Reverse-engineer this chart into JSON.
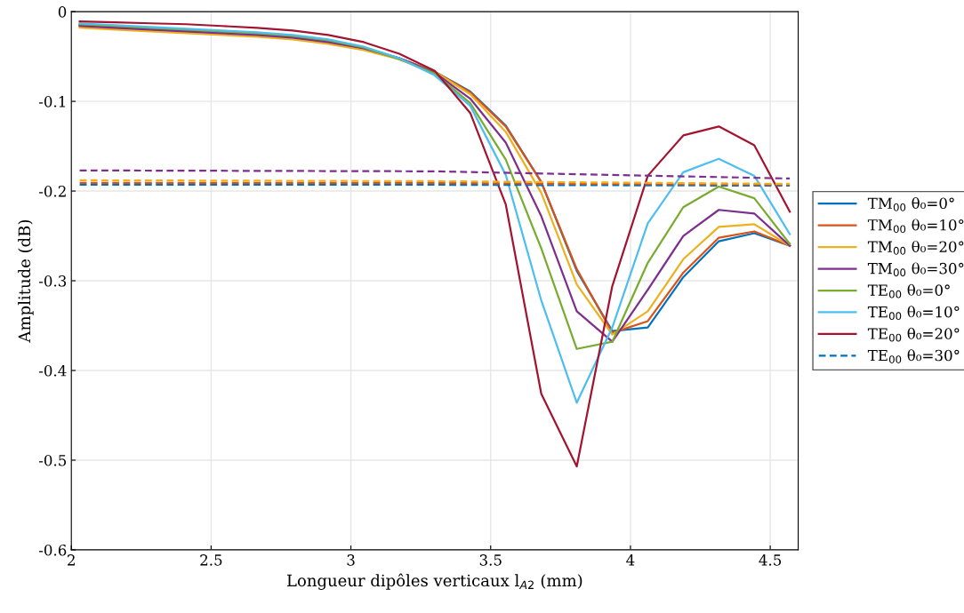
{
  "chart_data": {
    "type": "line",
    "xlabel": "Longueur dipôles verticaux l$_{A2}$ (mm)",
    "ylabel": "Amplitude (dB)",
    "x": [
      2.03,
      2.157,
      2.284,
      2.411,
      2.538,
      2.665,
      2.792,
      2.919,
      3.046,
      3.173,
      3.3,
      3.427,
      3.554,
      3.681,
      3.808,
      3.935,
      4.062,
      4.189,
      4.316,
      4.443,
      4.57
    ],
    "xlim": [
      2,
      4.6
    ],
    "xticks": [
      2,
      2.5,
      3,
      3.5,
      4,
      4.5
    ],
    "ylim": [
      -0.6,
      0
    ],
    "yticks": [
      -0.6,
      -0.5,
      -0.4,
      -0.3,
      -0.2,
      -0.1,
      0
    ],
    "grid": true,
    "legend": "right",
    "line_style": "solid",
    "marker": "none",
    "series": [
      {
        "name": "TM$_{00}$ θ₀=0°",
        "color": "#0072bd",
        "values": [
          -0.015,
          -0.017,
          -0.019,
          -0.021,
          -0.023,
          -0.025,
          -0.028,
          -0.033,
          -0.04,
          -0.052,
          -0.067,
          -0.089,
          -0.127,
          -0.19,
          -0.289,
          -0.356,
          -0.352,
          -0.296,
          -0.256,
          -0.247,
          -0.261
        ]
      },
      {
        "name": "TM$_{00}$ θ₀=10°",
        "color": "#d95319",
        "values": [
          -0.016,
          -0.018,
          -0.02,
          -0.022,
          -0.024,
          -0.026,
          -0.029,
          -0.034,
          -0.041,
          -0.052,
          -0.067,
          -0.09,
          -0.128,
          -0.19,
          -0.287,
          -0.358,
          -0.345,
          -0.291,
          -0.252,
          -0.245,
          -0.261
        ]
      },
      {
        "name": "TM$_{00}$ θ₀=20°",
        "color": "#edb120",
        "values": [
          -0.018,
          -0.02,
          -0.022,
          -0.024,
          -0.026,
          -0.028,
          -0.031,
          -0.036,
          -0.043,
          -0.053,
          -0.067,
          -0.092,
          -0.134,
          -0.202,
          -0.304,
          -0.36,
          -0.334,
          -0.276,
          -0.24,
          -0.237,
          -0.261
        ]
      },
      {
        "name": "TM$_{00}$ θ₀=30°",
        "color": "#7e2f8e",
        "values": [
          -0.016,
          -0.018,
          -0.02,
          -0.022,
          -0.024,
          -0.026,
          -0.029,
          -0.034,
          -0.041,
          -0.052,
          -0.068,
          -0.097,
          -0.146,
          -0.228,
          -0.334,
          -0.368,
          -0.31,
          -0.25,
          -0.221,
          -0.225,
          -0.261
        ]
      },
      {
        "name": "TE$_{00}$ θ₀=0°",
        "color": "#77ac30",
        "values": [
          -0.014,
          -0.016,
          -0.018,
          -0.02,
          -0.022,
          -0.024,
          -0.027,
          -0.032,
          -0.04,
          -0.053,
          -0.069,
          -0.102,
          -0.165,
          -0.264,
          -0.376,
          -0.368,
          -0.28,
          -0.218,
          -0.195,
          -0.208,
          -0.259
        ]
      },
      {
        "name": "TE$_{00}$ θ₀=10°",
        "color": "#4dbeee",
        "values": [
          -0.013,
          -0.015,
          -0.017,
          -0.019,
          -0.021,
          -0.023,
          -0.026,
          -0.031,
          -0.039,
          -0.052,
          -0.071,
          -0.105,
          -0.182,
          -0.322,
          -0.436,
          -0.352,
          -0.236,
          -0.179,
          -0.164,
          -0.183,
          -0.248
        ]
      },
      {
        "name": "TE$_{00}$ θ₀=20°",
        "color": "#a2142f",
        "values": [
          -0.011,
          -0.012,
          -0.013,
          -0.014,
          -0.016,
          -0.018,
          -0.021,
          -0.026,
          -0.034,
          -0.047,
          -0.066,
          -0.113,
          -0.215,
          -0.426,
          -0.507,
          -0.306,
          -0.183,
          -0.138,
          -0.128,
          -0.149,
          -0.223
        ]
      },
      {
        "name": "TE$_{00}$ θ₀=30°",
        "color": "#0072bd",
        "line_style": "dashed",
        "x": [
          2.03,
          3.3,
          4.57
        ],
        "values": [
          -0.193,
          -0.193,
          -0.194
        ]
      },
      {
        "color": "#d95319",
        "line_style": "dashed",
        "x": [
          2.03,
          3.3,
          4.57
        ],
        "values": [
          -0.191,
          -0.191,
          -0.193
        ]
      },
      {
        "color": "#edb120",
        "line_style": "dashed",
        "x": [
          2.03,
          3.3,
          4.57
        ],
        "values": [
          -0.188,
          -0.189,
          -0.192
        ]
      },
      {
        "color": "#7e2f8e",
        "line_style": "dashed",
        "x": [
          2.03,
          3.3,
          4.57
        ],
        "values": [
          -0.177,
          -0.178,
          -0.186
        ]
      }
    ]
  }
}
